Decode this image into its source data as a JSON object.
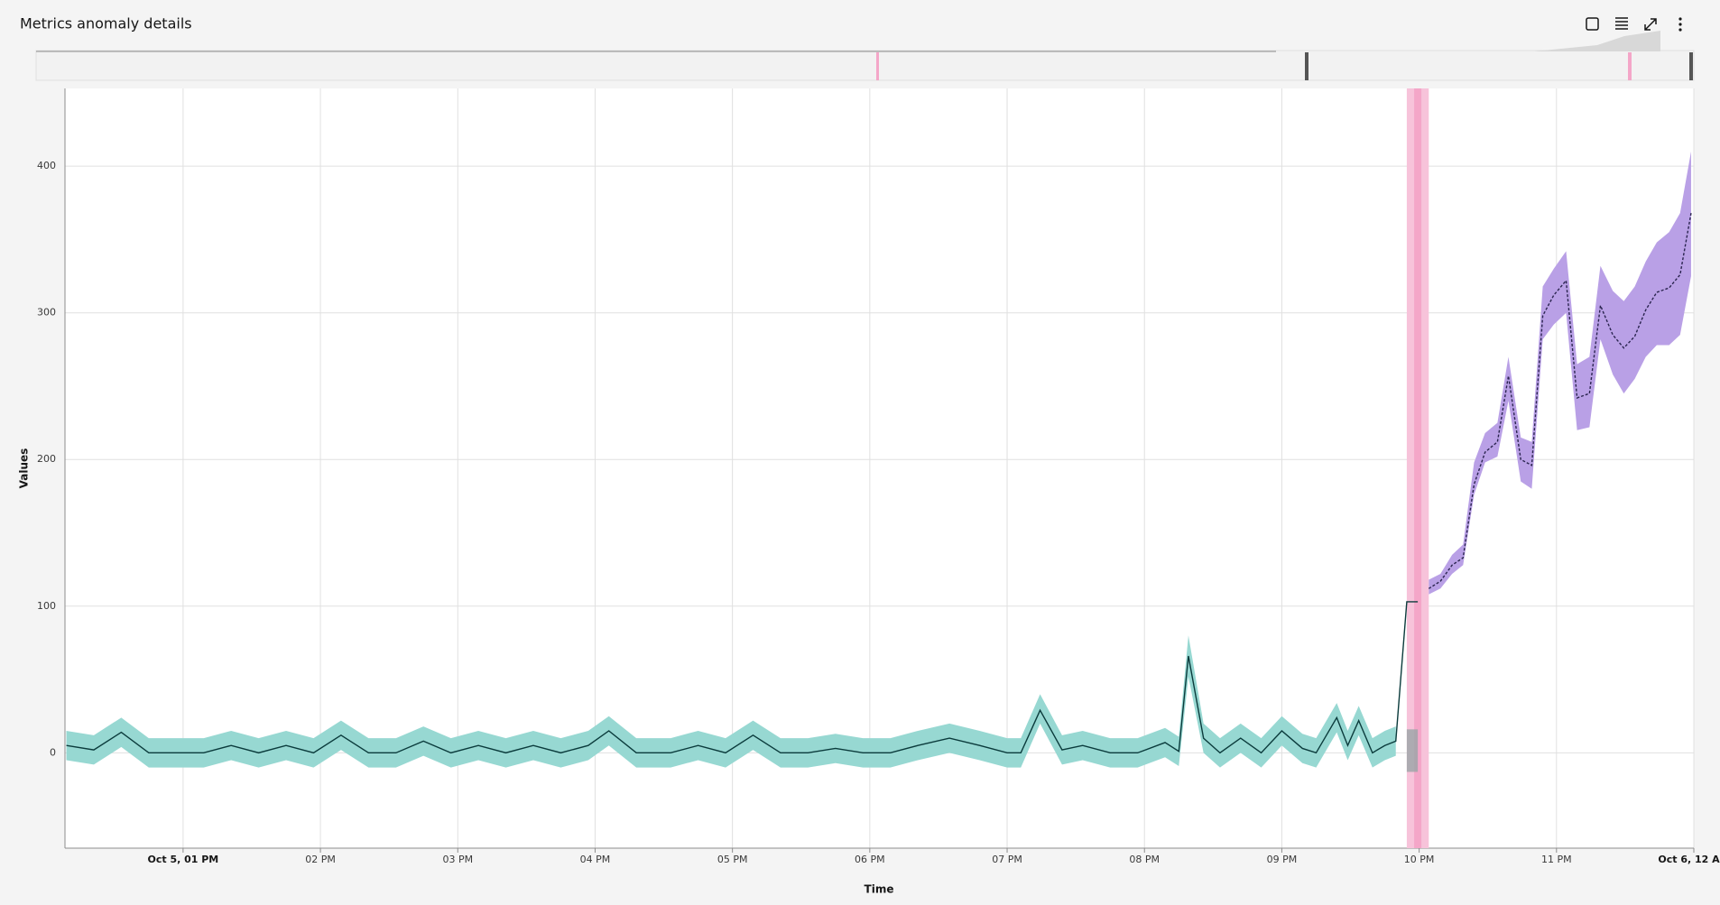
{
  "header": {
    "title": "Metrics anomaly details"
  },
  "chart_data": {
    "type": "line",
    "x_label": "Time",
    "y_label": "Values",
    "xlim": [
      12.14,
      24
    ],
    "xticks": [
      {
        "value": 13,
        "label": "Oct 5, 01 PM"
      },
      {
        "value": 14,
        "label": "02 PM"
      },
      {
        "value": 15,
        "label": "03 PM"
      },
      {
        "value": 16,
        "label": "04 PM"
      },
      {
        "value": 17,
        "label": "05 PM"
      },
      {
        "value": 18,
        "label": "06 PM"
      },
      {
        "value": 19,
        "label": "07 PM"
      },
      {
        "value": 20,
        "label": "08 PM"
      },
      {
        "value": 21,
        "label": "09 PM"
      },
      {
        "value": 22,
        "label": "10 PM"
      },
      {
        "value": 23,
        "label": "11 PM"
      },
      {
        "value": 24,
        "label": "Oct 6, 12 AM"
      }
    ],
    "ylim": [
      -65,
      453
    ],
    "yticks": [
      0,
      100,
      200,
      300,
      400
    ],
    "grid": true,
    "series": [
      {
        "color": "#0b3b3c",
        "band_color": "#97d8d2",
        "dashed": false,
        "x": [
          12.15,
          12.35,
          12.55,
          12.75,
          12.95,
          13.15,
          13.35,
          13.55,
          13.75,
          13.95,
          14.15,
          14.35,
          14.55,
          14.75,
          14.95,
          15.15,
          15.35,
          15.55,
          15.75,
          15.95,
          16.1,
          16.3,
          16.55,
          16.75,
          16.95,
          17.15,
          17.35,
          17.55,
          17.75,
          17.95,
          18.15,
          18.35,
          18.58,
          18.8,
          19.0,
          19.1,
          19.24,
          19.4,
          19.55,
          19.75,
          19.95,
          20.15,
          20.25,
          20.32,
          20.43,
          20.55,
          20.7,
          20.85,
          21.0,
          21.15,
          21.25,
          21.4,
          21.48,
          21.56,
          21.66,
          21.75,
          21.83,
          21.91,
          21.99
        ],
        "values": [
          5,
          2,
          14,
          0,
          0,
          0,
          5,
          0,
          5,
          0,
          12,
          0,
          0,
          8,
          0,
          5,
          0,
          5,
          0,
          5,
          15,
          0,
          0,
          5,
          0,
          12,
          0,
          0,
          3,
          0,
          0,
          5,
          10,
          5,
          0,
          0,
          29,
          2,
          5,
          0,
          0,
          7,
          1,
          66,
          10,
          0,
          10,
          0,
          15,
          3,
          0,
          24,
          5,
          22,
          0,
          5,
          8,
          103,
          103
        ],
        "lower": [
          -5,
          -8,
          4,
          -10,
          -10,
          -10,
          -5,
          -10,
          -5,
          -10,
          2,
          -10,
          -10,
          -2,
          -10,
          -5,
          -10,
          -5,
          -10,
          -5,
          5,
          -10,
          -10,
          -5,
          -10,
          2,
          -10,
          -10,
          -7,
          -10,
          -10,
          -5,
          0,
          -5,
          -10,
          -10,
          20,
          -8,
          -5,
          -10,
          -10,
          -3,
          -9,
          52,
          0,
          -10,
          0,
          -10,
          5,
          -7,
          -10,
          14,
          -5,
          12,
          -10,
          -5,
          -2,
          null,
          null
        ],
        "upper": [
          15,
          12,
          24,
          10,
          10,
          10,
          15,
          10,
          15,
          10,
          22,
          10,
          10,
          18,
          10,
          15,
          10,
          15,
          10,
          15,
          25,
          10,
          10,
          15,
          10,
          22,
          10,
          10,
          13,
          10,
          10,
          15,
          20,
          15,
          10,
          10,
          40,
          12,
          15,
          10,
          10,
          17,
          11,
          80,
          20,
          10,
          20,
          10,
          25,
          13,
          10,
          34,
          15,
          32,
          10,
          15,
          18,
          null,
          null
        ]
      },
      {
        "color": "#2b2550",
        "band_color": "#b9a0e6",
        "dashed": true,
        "x": [
          22.07,
          22.155,
          22.24,
          22.32,
          22.4,
          22.48,
          22.57,
          22.65,
          22.74,
          22.82,
          22.9,
          22.98,
          23.07,
          23.15,
          23.24,
          23.32,
          23.41,
          23.49,
          23.57,
          23.65,
          23.73,
          23.82,
          23.9,
          23.98
        ],
        "values": [
          112,
          117,
          128,
          133,
          183,
          205,
          212,
          257,
          200,
          196,
          298,
          312,
          322,
          242,
          245,
          305,
          285,
          276,
          284,
          302,
          314,
          317,
          326,
          368
        ],
        "lower": [
          108,
          112,
          122,
          128,
          176,
          198,
          202,
          240,
          185,
          180,
          282,
          292,
          300,
          220,
          222,
          282,
          258,
          245,
          255,
          270,
          278,
          278,
          285,
          325
        ],
        "upper": [
          118,
          122,
          135,
          142,
          198,
          218,
          225,
          270,
          215,
          212,
          318,
          330,
          342,
          265,
          270,
          332,
          315,
          308,
          318,
          335,
          348,
          355,
          368,
          410
        ]
      }
    ],
    "anomaly_region": {
      "x": [
        21.91,
        22.07
      ],
      "color": "#f7c3da"
    },
    "expected_range": {
      "x": [
        21.91,
        21.99
      ],
      "y": [
        -13,
        16
      ],
      "color": "#9aa5a6"
    }
  }
}
